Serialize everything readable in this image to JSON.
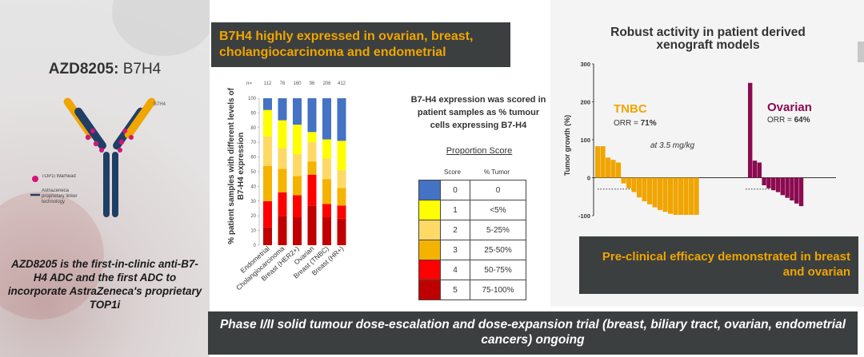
{
  "left": {
    "title_bold": "AZD8205:",
    "title_rest": " B7H4",
    "diagram": {
      "label": "B7H4",
      "legend_warhead": "TOP1i Warhead",
      "legend_linker": "AstraZeneca proprietary linker technology"
    },
    "description": "AZD8205 is the first-in-clinic anti-B7-H4 ADC and the first ADC to incorporate AstraZeneca's proprietary TOP1i"
  },
  "middle": {
    "header": "B7H4 highly expressed in ovarian, breast, cholangiocarcinoma and endometrial",
    "scored_text": "B7-H4 expression was scored in patient samples as % tumour cells expressing B7-H4",
    "proportion_title": "Proportion Score",
    "proportion_cols": [
      "Score",
      "% Tumor"
    ],
    "scores": [
      {
        "score": "0",
        "tumor": "0",
        "color": "#4472c4"
      },
      {
        "score": "1",
        "tumor": "<5%",
        "color": "#ffff00"
      },
      {
        "score": "2",
        "tumor": "5-25%",
        "color": "#ffd966"
      },
      {
        "score": "3",
        "tumor": "25-50%",
        "color": "#f5b300"
      },
      {
        "score": "4",
        "tumor": "50-75%",
        "color": "#ff0000"
      },
      {
        "score": "5",
        "tumor": "75-100%",
        "color": "#c00000"
      }
    ]
  },
  "right": {
    "title": "Robust activity in patient derived xenograft models",
    "footer": "Pre-clinical efficacy demonstrated in breast and ovarian"
  },
  "bottom": {
    "banner": "Phase I/II solid tumour dose-escalation and dose-expansion trial (breast, biliary tract, ovarian, endometrial cancers) ongoing"
  },
  "chart_data": [
    {
      "type": "bar",
      "stacked": true,
      "ylabel": "% patient samples with different levels of B7-H4 expression",
      "ylim": [
        0,
        100
      ],
      "yticks": [
        0,
        10,
        20,
        30,
        40,
        50,
        60,
        70,
        80,
        90,
        100
      ],
      "n_label": "n=",
      "categories": [
        "Endometrial",
        "Cholangiocarcinoma",
        "Breast (HER2+)",
        "Ovarian",
        "Breast (TNBC)",
        "Breast (HR+)"
      ],
      "n_values": [
        "112",
        "76",
        "160",
        "96",
        "206",
        "412"
      ],
      "series": [
        {
          "name": "5",
          "color": "#c00000",
          "values": [
            12,
            20,
            19,
            27,
            19,
            18
          ]
        },
        {
          "name": "4",
          "color": "#ff0000",
          "values": [
            18,
            16,
            15,
            21,
            9,
            9
          ]
        },
        {
          "name": "3",
          "color": "#f5b300",
          "values": [
            24,
            16,
            13,
            9,
            17,
            12
          ]
        },
        {
          "name": "2",
          "color": "#ffd966",
          "values": [
            20,
            14,
            15,
            13,
            14,
            12
          ]
        },
        {
          "name": "1",
          "color": "#ffff00",
          "values": [
            18,
            19,
            20,
            7,
            13,
            20
          ]
        },
        {
          "name": "0",
          "color": "#4472c4",
          "values": [
            8,
            15,
            18,
            23,
            28,
            29
          ]
        }
      ]
    },
    {
      "type": "bar",
      "subtype": "waterfall",
      "ylabel": "Tumor growth (%)",
      "ylim": [
        -100,
        300
      ],
      "yticks": [
        -100,
        0,
        100,
        200,
        300
      ],
      "dose_note": "at 3.5 mg/kg",
      "series": [
        {
          "name": "TNBC",
          "orr_label": "ORR = ",
          "orr_value": "71%",
          "color": "#f0a500",
          "values": [
            83,
            83,
            53,
            47,
            40,
            -15,
            -28,
            -38,
            -52,
            -62,
            -70,
            -78,
            -85,
            -90,
            -95,
            -98,
            -98,
            -98,
            -98,
            -98
          ]
        },
        {
          "name": "Ovarian",
          "orr_label": "ORR = ",
          "orr_value": "64%",
          "color": "#8b0a50",
          "values": [
            250,
            45,
            40,
            -20,
            -28,
            -33,
            -38,
            -46,
            -53,
            -60,
            -68,
            -75
          ]
        }
      ]
    }
  ]
}
